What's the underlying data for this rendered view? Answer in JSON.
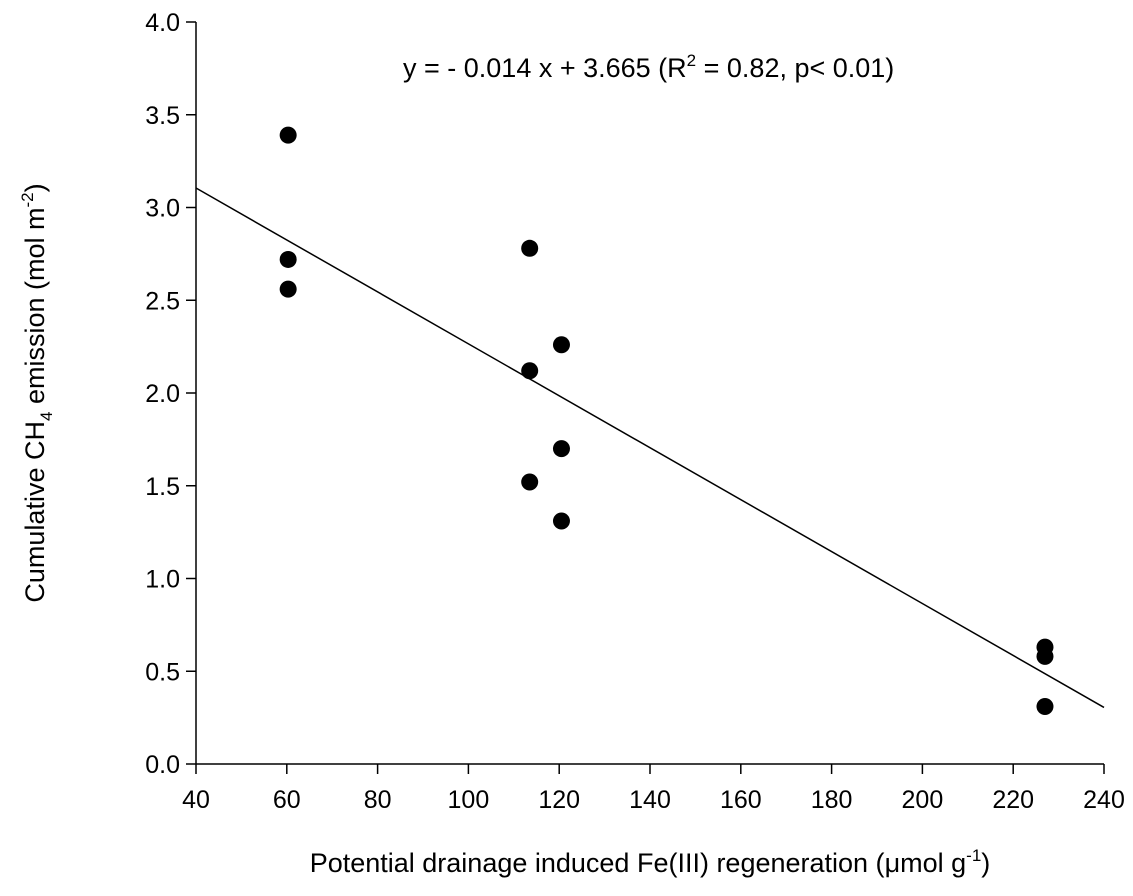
{
  "chart_data": {
    "type": "scatter",
    "xlabel": "Potential drainage induced Fe(III) regeneration (μmol g⁻¹)",
    "xlabel_parts": {
      "pre": "Potential drainage induced Fe(III) regeneration (",
      "mu": "μ",
      "mid": "mol g",
      "sup": "-1",
      "post": ")"
    },
    "ylabel": "Cumulative CH₄ emission (mol m⁻²)",
    "ylabel_parts": {
      "pre": "Cumulative CH",
      "sub": "4",
      "mid": " emission (mol m",
      "sup": "-2",
      "post": ")"
    },
    "xlim": [
      40,
      240
    ],
    "ylim": [
      0,
      4
    ],
    "xticks": [
      40,
      60,
      80,
      100,
      120,
      140,
      160,
      180,
      200,
      220,
      240
    ],
    "yticks": [
      "0.0",
      "0.5",
      "1.0",
      "1.5",
      "2.0",
      "2.5",
      "3.0",
      "3.5",
      "4.0"
    ],
    "grid": false,
    "points": [
      {
        "x": 60.3,
        "y": 3.39
      },
      {
        "x": 60.3,
        "y": 2.72
      },
      {
        "x": 60.3,
        "y": 2.56
      },
      {
        "x": 113.5,
        "y": 2.78
      },
      {
        "x": 113.5,
        "y": 2.12
      },
      {
        "x": 113.5,
        "y": 1.52
      },
      {
        "x": 120.5,
        "y": 2.26
      },
      {
        "x": 120.5,
        "y": 1.7
      },
      {
        "x": 120.5,
        "y": 1.31
      },
      {
        "x": 227.0,
        "y": 0.63
      },
      {
        "x": 227.0,
        "y": 0.58
      },
      {
        "x": 227.0,
        "y": 0.31
      }
    ],
    "fit": {
      "slope": -0.014,
      "intercept": 3.665,
      "x_start": 40,
      "x_end": 240
    },
    "annotation": {
      "eq": "y = - 0.014 x + 3.665 (R",
      "sup": "2",
      "rest": " = 0.82, p< 0.01)"
    }
  }
}
